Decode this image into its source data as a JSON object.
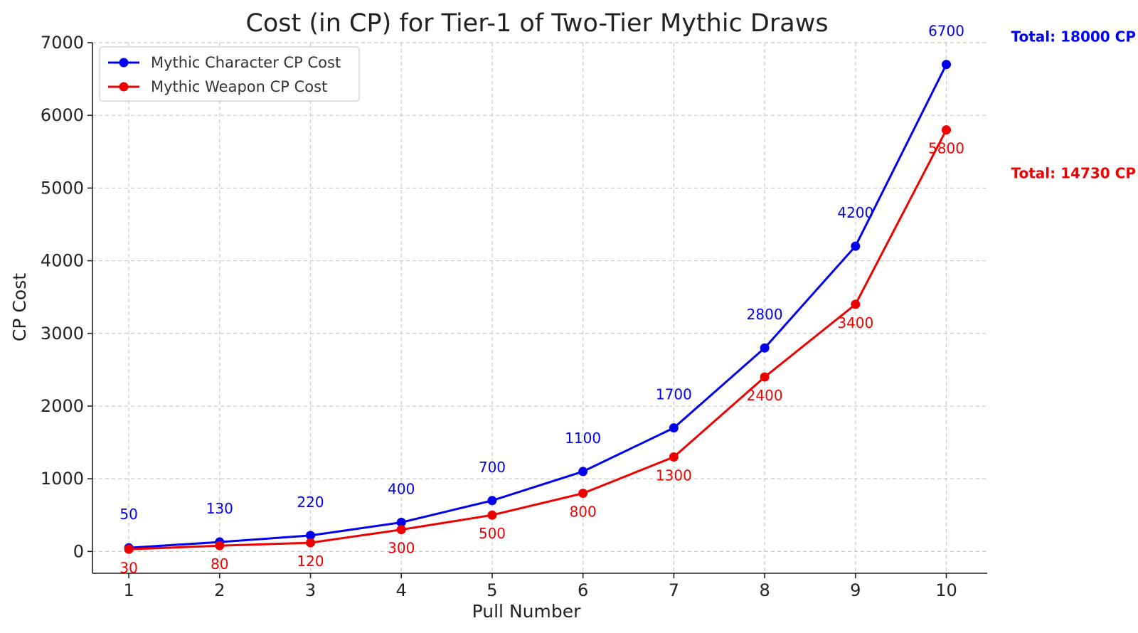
{
  "chart_data": {
    "type": "line",
    "title": "Cost (in CP) for Tier-1 of Two-Tier Mythic Draws",
    "xlabel": "Pull Number",
    "ylabel": "CP Cost",
    "x": [
      1,
      2,
      3,
      4,
      5,
      6,
      7,
      8,
      9,
      10
    ],
    "xticks": [
      1,
      2,
      3,
      4,
      5,
      6,
      7,
      8,
      9,
      10
    ],
    "xlim": [
      0.6,
      10.45
    ],
    "ylim": [
      -300,
      7000
    ],
    "yticks": [
      0,
      1000,
      2000,
      3000,
      4000,
      5000,
      6000,
      7000
    ],
    "grid": true,
    "legend_position": "top-left",
    "series": [
      {
        "name": "Mythic Character CP Cost",
        "color": "#0000ee",
        "marker": "circle",
        "values": [
          50,
          130,
          220,
          400,
          700,
          1100,
          1700,
          2800,
          4200,
          6700
        ],
        "data_labels": [
          "50",
          "130",
          "220",
          "400",
          "700",
          "1100",
          "1700",
          "2800",
          "4200",
          "6700"
        ],
        "total_label": "Total: 18000 CP"
      },
      {
        "name": "Mythic Weapon CP Cost",
        "color": "#ee0000",
        "marker": "circle",
        "values": [
          30,
          80,
          120,
          300,
          500,
          800,
          1300,
          2400,
          3400,
          5800
        ],
        "data_labels": [
          "30",
          "80",
          "120",
          "300",
          "500",
          "800",
          "1300",
          "2400",
          "3400",
          "5800"
        ],
        "total_label": "Total: 14730 CP"
      }
    ]
  }
}
